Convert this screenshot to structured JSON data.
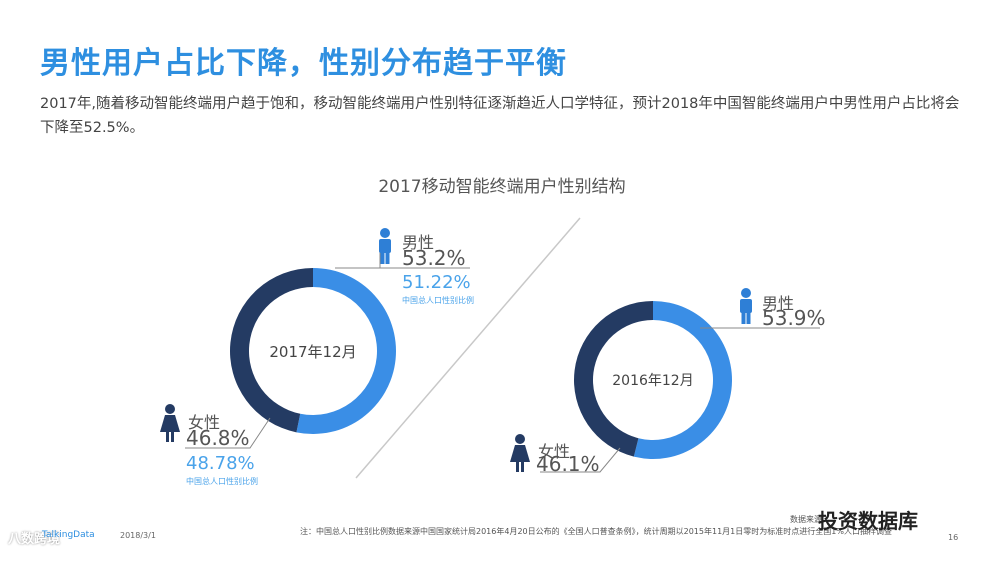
{
  "header": {
    "title": "男性用户占比下降，性别分布趋于平衡",
    "subtitle": "2017年,随着移动智能终端用户趋于饱和，移动智能终端用户性别特征逐渐趋近人口学特征，预计2018年中国智能终端用户中男性用户占比将会下降至52.5%。"
  },
  "chart_title": "2017移动智能终端用户性别结构",
  "chart_data": [
    {
      "type": "pie",
      "center_label": "2017年12月",
      "series": [
        {
          "name": "男性",
          "value": 53.2,
          "label": "53.2%",
          "color": "#3a8ee6"
        },
        {
          "name": "女性",
          "value": 46.8,
          "label": "46.8%",
          "color": "#243b63"
        }
      ],
      "census_male": "51.22%",
      "census_female": "48.78%",
      "census_note": "中国总人口性别比例"
    },
    {
      "type": "pie",
      "center_label": "2016年12月",
      "series": [
        {
          "name": "男性",
          "value": 53.9,
          "label": "53.9%",
          "color": "#3a8ee6"
        },
        {
          "name": "女性",
          "value": 46.1,
          "label": "46.1%",
          "color": "#243b63"
        }
      ]
    }
  ],
  "footer": {
    "note": "注：中国总人口性别比例数据来源中国国家统计局2016年4月20日公布的《全国人口普查条例》，统计周期以2015年11月1日零时为标准时点进行全国1%人口抽样调查",
    "source": "数据来源",
    "brand": "TalkingData",
    "date": "2018/3/1",
    "page": "16",
    "watermark": "投资数据库",
    "corner_brand": "八数跨境"
  },
  "colors": {
    "accent": "#2e8fe0",
    "male": "#3a8ee6",
    "female": "#243b63",
    "census": "#4aa3ea"
  }
}
